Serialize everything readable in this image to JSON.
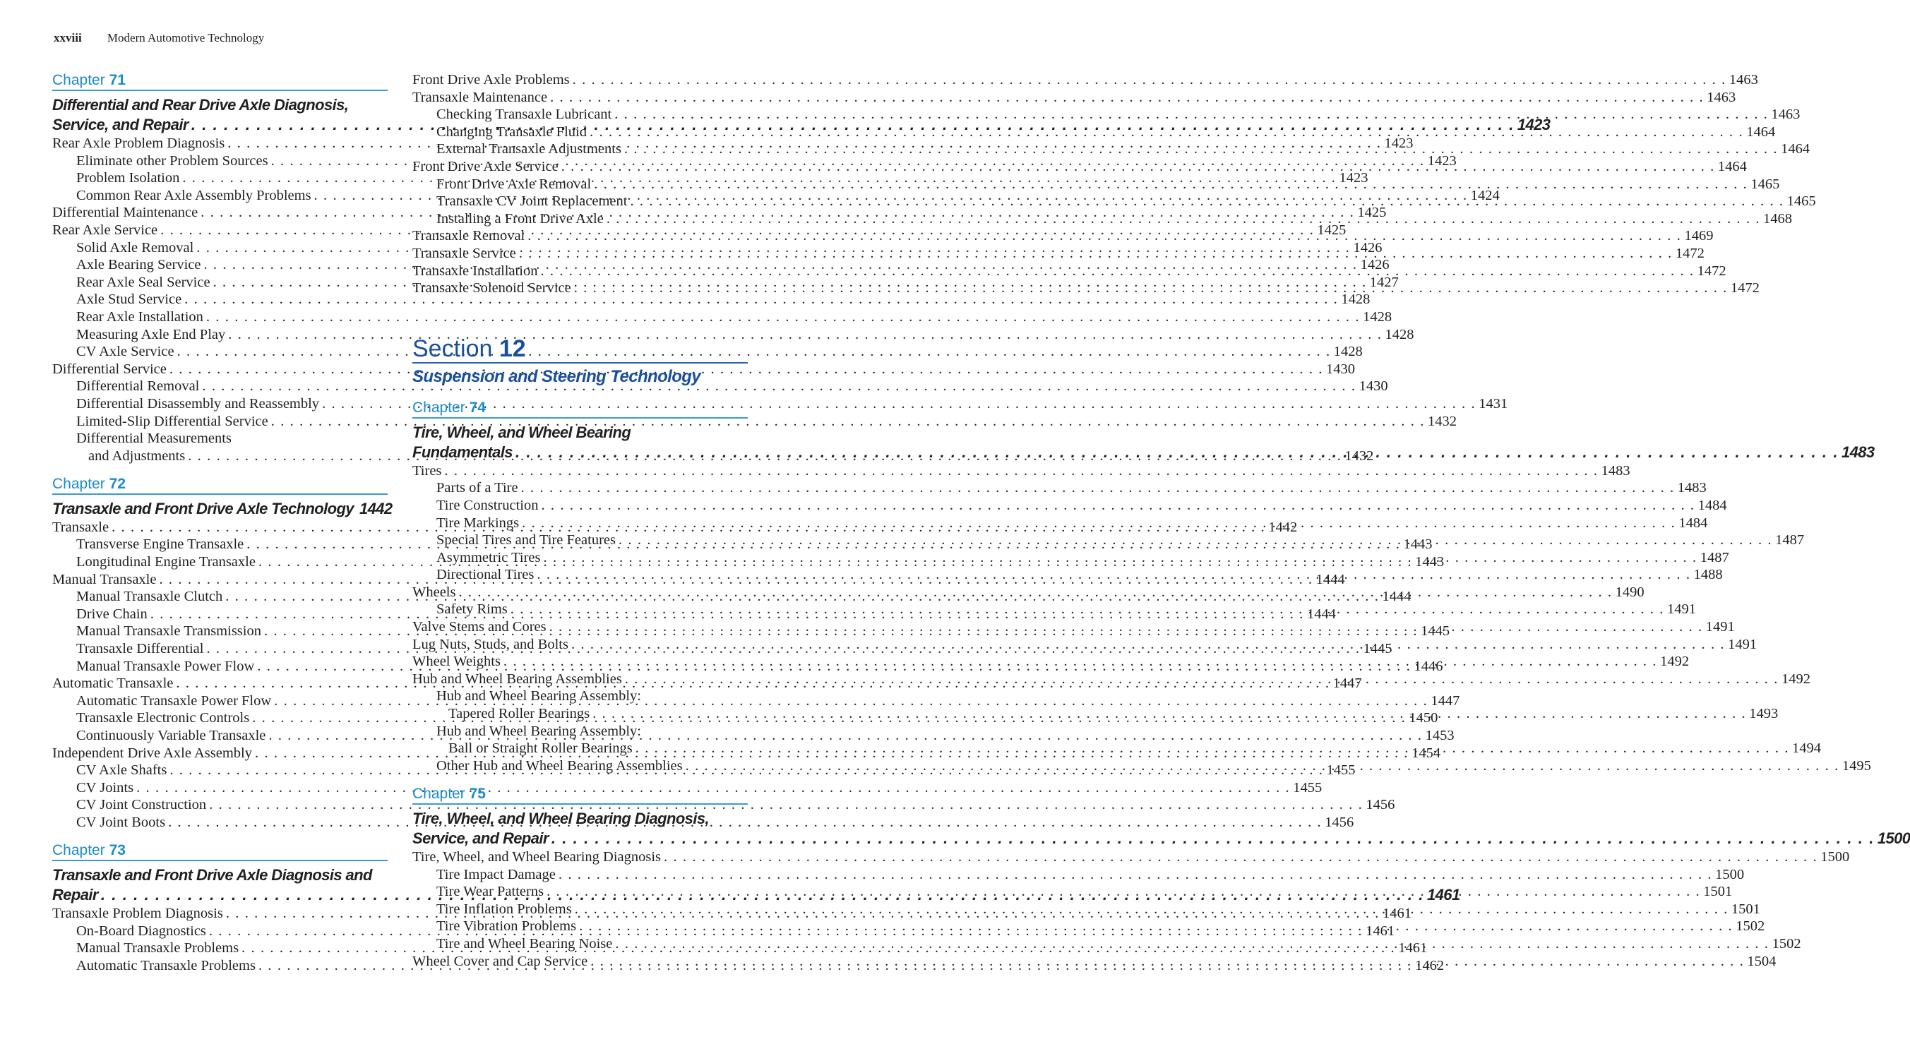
{
  "header": {
    "folio": "xxviii",
    "book_title": "Modern Automotive Technology"
  },
  "left": {
    "ch71": {
      "label": "Chapter",
      "num": "71",
      "title1": "Differential and Rear Drive Axle Diagnosis,",
      "title2": "Service, and Repair",
      "page": "1423",
      "entries": [
        {
          "t": "Rear Axle Problem Diagnosis",
          "p": "1423",
          "l": 0
        },
        {
          "t": "Eliminate other Problem Sources",
          "p": "1423",
          "l": 1
        },
        {
          "t": "Problem Isolation",
          "p": "1423",
          "l": 1
        },
        {
          "t": "Common Rear Axle Assembly Problems",
          "p": "1424",
          "l": 1
        },
        {
          "t": "Differential Maintenance",
          "p": "1425",
          "l": 0
        },
        {
          "t": "Rear Axle Service",
          "p": "1425",
          "l": 0
        },
        {
          "t": "Solid Axle Removal",
          "p": "1426",
          "l": 1
        },
        {
          "t": "Axle Bearing Service",
          "p": "1426",
          "l": 1
        },
        {
          "t": "Rear Axle Seal Service",
          "p": "1427",
          "l": 1
        },
        {
          "t": "Axle Stud Service",
          "p": "1428",
          "l": 1
        },
        {
          "t": "Rear Axle Installation",
          "p": "1428",
          "l": 1
        },
        {
          "t": "Measuring Axle End Play",
          "p": "1428",
          "l": 1
        },
        {
          "t": "CV Axle Service",
          "p": "1428",
          "l": 1
        },
        {
          "t": "Differential Service",
          "p": "1430",
          "l": 0
        },
        {
          "t": "Differential Removal",
          "p": "1430",
          "l": 1
        },
        {
          "t": "Differential Disassembly and Reassembly",
          "p": "1431",
          "l": 1
        },
        {
          "t": "Limited-Slip Differential Service",
          "p": "1432",
          "l": 1
        },
        {
          "t": "Differential Measurements",
          "p": "",
          "l": 1
        },
        {
          "t": "and Adjustments",
          "p": "1432",
          "l": 2
        }
      ]
    },
    "ch72": {
      "label": "Chapter",
      "num": "72",
      "title1": "Transaxle and Front Drive Axle Technology",
      "page": "1442",
      "entries": [
        {
          "t": "Transaxle",
          "p": "1442",
          "l": 0
        },
        {
          "t": "Transverse Engine Transaxle",
          "p": "1443",
          "l": 1
        },
        {
          "t": "Longitudinal Engine Transaxle",
          "p": "1443",
          "l": 1
        },
        {
          "t": "Manual Transaxle",
          "p": "1444",
          "l": 0
        },
        {
          "t": "Manual Transaxle Clutch",
          "p": "1444",
          "l": 1
        },
        {
          "t": "Drive Chain",
          "p": "1444",
          "l": 1
        },
        {
          "t": "Manual Transaxle Transmission",
          "p": "1445",
          "l": 1
        },
        {
          "t": "Transaxle Differential",
          "p": "1445",
          "l": 1
        },
        {
          "t": "Manual Transaxle Power Flow",
          "p": "1446",
          "l": 1
        },
        {
          "t": "Automatic Transaxle",
          "p": "1447",
          "l": 0
        },
        {
          "t": "Automatic Transaxle Power Flow",
          "p": "1447",
          "l": 1
        },
        {
          "t": "Transaxle Electronic Controls",
          "p": "1450",
          "l": 1
        },
        {
          "t": "Continuously Variable Transaxle",
          "p": "1453",
          "l": 1
        },
        {
          "t": "Independent Drive Axle Assembly",
          "p": "1454",
          "l": 0
        },
        {
          "t": "CV Axle Shafts",
          "p": "1455",
          "l": 1
        },
        {
          "t": "CV Joints",
          "p": "1455",
          "l": 1
        },
        {
          "t": "CV Joint Construction",
          "p": "1456",
          "l": 1
        },
        {
          "t": "CV Joint Boots",
          "p": "1456",
          "l": 1
        }
      ]
    },
    "ch73": {
      "label": "Chapter",
      "num": "73",
      "title1": "Transaxle and Front Drive Axle Diagnosis and",
      "title2": "Repair",
      "page": "1461",
      "entries": [
        {
          "t": "Transaxle Problem Diagnosis",
          "p": "1461",
          "l": 0
        },
        {
          "t": "On-Board Diagnostics",
          "p": "1461",
          "l": 1
        },
        {
          "t": "Manual Transaxle Problems",
          "p": "1461",
          "l": 1
        },
        {
          "t": "Automatic Transaxle Problems",
          "p": "1462",
          "l": 1
        }
      ]
    }
  },
  "right": {
    "cont": [
      {
        "t": "Front Drive Axle Problems",
        "p": "1463",
        "l": 0
      },
      {
        "t": "Transaxle Maintenance",
        "p": "1463",
        "l": 0
      },
      {
        "t": "Checking Transaxle Lubricant",
        "p": "1463",
        "l": 1
      },
      {
        "t": "Changing Transaxle Fluid",
        "p": "1464",
        "l": 1
      },
      {
        "t": "External Transaxle Adjustments",
        "p": "1464",
        "l": 1
      },
      {
        "t": "Front Drive Axle Service",
        "p": "1464",
        "l": 0
      },
      {
        "t": "Front Drive Axle Removal",
        "p": "1465",
        "l": 1
      },
      {
        "t": "Transaxle CV Joint Replacement",
        "p": "1465",
        "l": 1
      },
      {
        "t": "Installing a Front Drive Axle",
        "p": "1468",
        "l": 1
      },
      {
        "t": "Transaxle Removal",
        "p": "1469",
        "l": 0
      },
      {
        "t": "Transaxle Service",
        "p": "1472",
        "l": 0
      },
      {
        "t": "Transaxle Installation",
        "p": "1472",
        "l": 0
      },
      {
        "t": "Transaxle Solenoid Service",
        "p": "1472",
        "l": 0
      }
    ],
    "section": {
      "label": "Section",
      "num": "12",
      "title": "Suspension and Steering Technology"
    },
    "ch74": {
      "label": "Chapter",
      "num": "74",
      "title1": "Tire, Wheel, and Wheel Bearing",
      "title2": "Fundamentals",
      "page": "1483",
      "entries": [
        {
          "t": "Tires",
          "p": "1483",
          "l": 0
        },
        {
          "t": "Parts of a Tire",
          "p": "1483",
          "l": 1
        },
        {
          "t": "Tire Construction",
          "p": "1484",
          "l": 1
        },
        {
          "t": "Tire Markings",
          "p": "1484",
          "l": 1
        },
        {
          "t": "Special Tires and Tire Features",
          "p": "1487",
          "l": 1
        },
        {
          "t": "Asymmetric Tires",
          "p": "1487",
          "l": 1
        },
        {
          "t": "Directional Tires",
          "p": "1488",
          "l": 1
        },
        {
          "t": "Wheels",
          "p": "1490",
          "l": 0
        },
        {
          "t": "Safety Rims",
          "p": "1491",
          "l": 1
        },
        {
          "t": "Valve Stems and Cores",
          "p": "1491",
          "l": 0
        },
        {
          "t": "Lug Nuts, Studs, and Bolts",
          "p": "1491",
          "l": 0
        },
        {
          "t": "Wheel Weights",
          "p": "1492",
          "l": 0
        },
        {
          "t": "Hub and Wheel Bearing Assemblies",
          "p": "1492",
          "l": 0
        },
        {
          "t": "Hub and Wheel Bearing Assembly:",
          "p": "",
          "l": 1
        },
        {
          "t": "Tapered Roller Bearings",
          "p": "1493",
          "l": 2
        },
        {
          "t": "Hub and Wheel Bearing Assembly:",
          "p": "",
          "l": 1
        },
        {
          "t": "Ball or Straight Roller Bearings",
          "p": "1494",
          "l": 2
        },
        {
          "t": "Other Hub and Wheel Bearing Assemblies",
          "p": "1495",
          "l": 1
        }
      ]
    },
    "ch75": {
      "label": "Chapter",
      "num": "75",
      "title1": "Tire, Wheel, and Wheel Bearing Diagnosis,",
      "title2": "Service, and Repair",
      "page": "1500",
      "entries": [
        {
          "t": "Tire, Wheel, and Wheel Bearing Diagnosis",
          "p": "1500",
          "l": 0
        },
        {
          "t": "Tire Impact Damage",
          "p": "1500",
          "l": 1
        },
        {
          "t": "Tire Wear Patterns",
          "p": "1501",
          "l": 1
        },
        {
          "t": "Tire Inflation Problems",
          "p": "1501",
          "l": 1
        },
        {
          "t": "Tire Vibration Problems",
          "p": "1502",
          "l": 1
        },
        {
          "t": "Tire and Wheel Bearing Noise",
          "p": "1502",
          "l": 1
        },
        {
          "t": "Wheel Cover and Cap Service",
          "p": "1504",
          "l": 0
        }
      ]
    }
  },
  "colors": {
    "chapter": "#1b8bc9",
    "section": "#1a4f9c",
    "text": "#231f20"
  }
}
